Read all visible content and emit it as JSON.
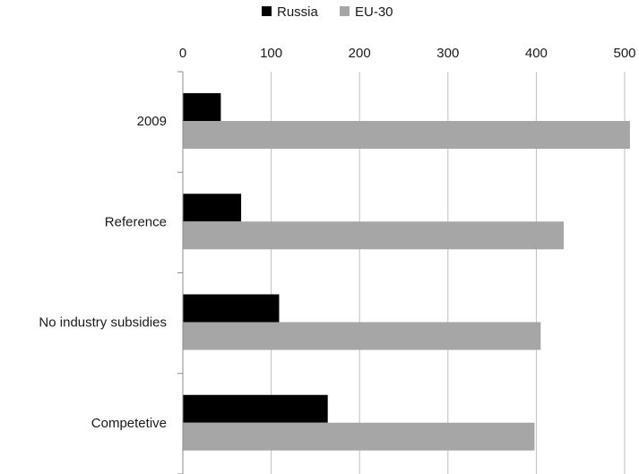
{
  "chart_data": {
    "type": "bar",
    "orientation": "horizontal",
    "categories": [
      "2009",
      "Reference",
      "No industry subsidies",
      "Competetive"
    ],
    "series": [
      {
        "name": "Russia",
        "color": "#000000",
        "values": [
          43,
          66,
          109,
          164
        ]
      },
      {
        "name": "EU-30",
        "color": "#a6a6a6",
        "values": [
          506,
          431,
          405,
          398
        ]
      }
    ],
    "xlim": [
      0,
      500
    ],
    "x_ticks": [
      "0",
      "100",
      "200",
      "300",
      "400",
      "500"
    ],
    "x_axis_position": "top",
    "grid": true,
    "legend_position": "top-center"
  }
}
